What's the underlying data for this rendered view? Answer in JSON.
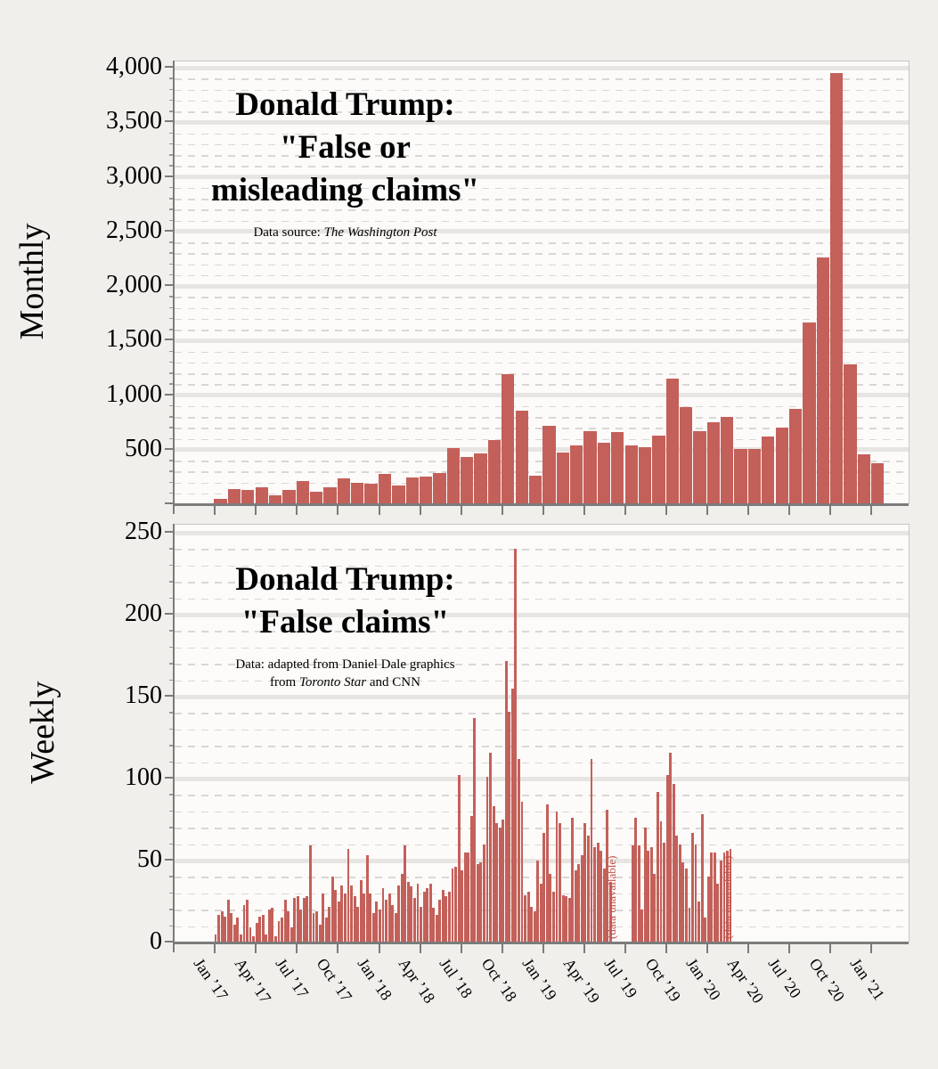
{
  "colors": {
    "bar": "#c4605a",
    "gap_annotation": "#c3524c",
    "major_gridline": "#e7e5e2",
    "minor_gridline": "#d9d7d4",
    "axis": "#7b7b7b",
    "plot_background": "#fcfbfa",
    "page_background": "#f1efec"
  },
  "x_axis": {
    "labels": [
      "Jan ’17",
      "Apr ’17",
      "Jul ’17",
      "Oct ’17",
      "Jan ’18",
      "Apr ’18",
      "Jul ’18",
      "Oct ’18",
      "Jan ’19",
      "Apr ’19",
      "Jul ’19",
      "Oct ’19",
      "Jan ’20",
      "Apr ’20",
      "Jul ’20",
      "Oct ’20",
      "Jan ’21"
    ]
  },
  "chart_data": [
    {
      "type": "bar",
      "id": "monthly",
      "title_lines": [
        "Donald Trump:",
        "\"False or",
        "misleading claims\""
      ],
      "subtitle_prefix": "Data source: ",
      "subtitle_source": "The Washington Post",
      "ylabel": "Monthly",
      "ylim": [
        0,
        4060
      ],
      "gridlines": {
        "major_step": 500,
        "minor_step": 100
      },
      "y_ticks": [
        {
          "v": 0,
          "label": ""
        },
        {
          "v": 500,
          "label": "500"
        },
        {
          "v": 1000,
          "label": "1,000"
        },
        {
          "v": 1500,
          "label": "1,500"
        },
        {
          "v": 2000,
          "label": "2,000"
        },
        {
          "v": 2500,
          "label": "2,500"
        },
        {
          "v": 3000,
          "label": "3,000"
        },
        {
          "v": 3500,
          "label": "3,500"
        },
        {
          "v": 4000,
          "label": "4,000"
        }
      ],
      "categories": [
        "Jan ’17",
        "Feb ’17",
        "Mar ’17",
        "Apr ’17",
        "May ’17",
        "Jun ’17",
        "Jul ’17",
        "Aug ’17",
        "Sep ’17",
        "Oct ’17",
        "Nov ’17",
        "Dec ’17",
        "Jan ’18",
        "Feb ’18",
        "Mar ’18",
        "Apr ’18",
        "May ’18",
        "Jun ’18",
        "Jul ’18",
        "Aug ’18",
        "Sep ’18",
        "Oct ’18",
        "Nov ’18",
        "Dec ’18",
        "Jan ’19",
        "Feb ’19",
        "Mar ’19",
        "Apr ’19",
        "May ’19",
        "Jun ’19",
        "Jul ’19",
        "Aug ’19",
        "Sep ’19",
        "Oct ’19",
        "Nov ’19",
        "Dec ’19",
        "Jan ’20",
        "Feb ’20",
        "Mar ’20",
        "Apr ’20",
        "May ’20",
        "Jun ’20",
        "Jul ’20",
        "Aug ’20",
        "Sep ’20",
        "Oct ’20",
        "Nov ’20",
        "Dec ’20",
        "Jan ’21"
      ],
      "values": [
        45,
        140,
        130,
        155,
        85,
        130,
        210,
        115,
        155,
        235,
        200,
        190,
        275,
        170,
        245,
        255,
        285,
        515,
        435,
        465,
        585,
        1195,
        860,
        265,
        720,
        470,
        540,
        670,
        560,
        660,
        535,
        520,
        625,
        1150,
        890,
        670,
        750,
        800,
        510,
        510,
        620,
        705,
        870,
        1665,
        2260,
        3955,
        1285,
        460,
        375
      ]
    },
    {
      "type": "bar",
      "id": "weekly",
      "title_lines": [
        "Donald Trump:",
        "\"False claims\""
      ],
      "subtitle_line1": "Data: adapted from Daniel Dale graphics",
      "subtitle_line2_prefix": "from ",
      "subtitle_line2_italic": "Toronto Star",
      "subtitle_line2_suffix": " and CNN",
      "ylabel": "Weekly",
      "ylim": [
        0,
        255
      ],
      "gridlines": {
        "major_step": 50,
        "minor_step": 10
      },
      "y_ticks": [
        {
          "v": 0,
          "label": "0"
        },
        {
          "v": 50,
          "label": "50"
        },
        {
          "v": 100,
          "label": "100"
        },
        {
          "v": 150,
          "label": "150"
        },
        {
          "v": 200,
          "label": "200"
        },
        {
          "v": 250,
          "label": "250"
        }
      ],
      "gap_annotations": [
        {
          "label": "(data unavailable)"
        },
        {
          "label": "(data unavailable)"
        }
      ],
      "segments": [
        {
          "start_week_index": 0,
          "start_label": "Jan ’17",
          "values": [
            5,
            17,
            19,
            16,
            26,
            18,
            11,
            15,
            5,
            23,
            26,
            9,
            4,
            12,
            16,
            17,
            5,
            20,
            21,
            4,
            13,
            15,
            26,
            19,
            9,
            27,
            28,
            20,
            27,
            28,
            59,
            18,
            19,
            11,
            30,
            15,
            22,
            40,
            32,
            25,
            35,
            30,
            57,
            35,
            28,
            22,
            38,
            30,
            53,
            30,
            18,
            25,
            20,
            33,
            26,
            30,
            23,
            18,
            35,
            42,
            59,
            37,
            34,
            27,
            36,
            22,
            31,
            33,
            36,
            21,
            17,
            26,
            32,
            28,
            31,
            45,
            46,
            102,
            44,
            55,
            55,
            77,
            137,
            48,
            49,
            60,
            101,
            116,
            83,
            73,
            70,
            75,
            172,
            141,
            155,
            240,
            112,
            86,
            29,
            31,
            22,
            19,
            50,
            36,
            67,
            84,
            42,
            31,
            80,
            73,
            29,
            28,
            27,
            76,
            44,
            48,
            53,
            73,
            65,
            112,
            58,
            61,
            56,
            45,
            81,
            37
          ]
        },
        {
          "start_week_index": 132,
          "start_label": "Jul ’19",
          "values": [
            59,
            76,
            59,
            20,
            70,
            56,
            58,
            42,
            92,
            74,
            61,
            102,
            116,
            97,
            65,
            60,
            49,
            45,
            21,
            67,
            60,
            25,
            78,
            15,
            40,
            55,
            55,
            36,
            50,
            55,
            56,
            57
          ]
        }
      ]
    }
  ]
}
